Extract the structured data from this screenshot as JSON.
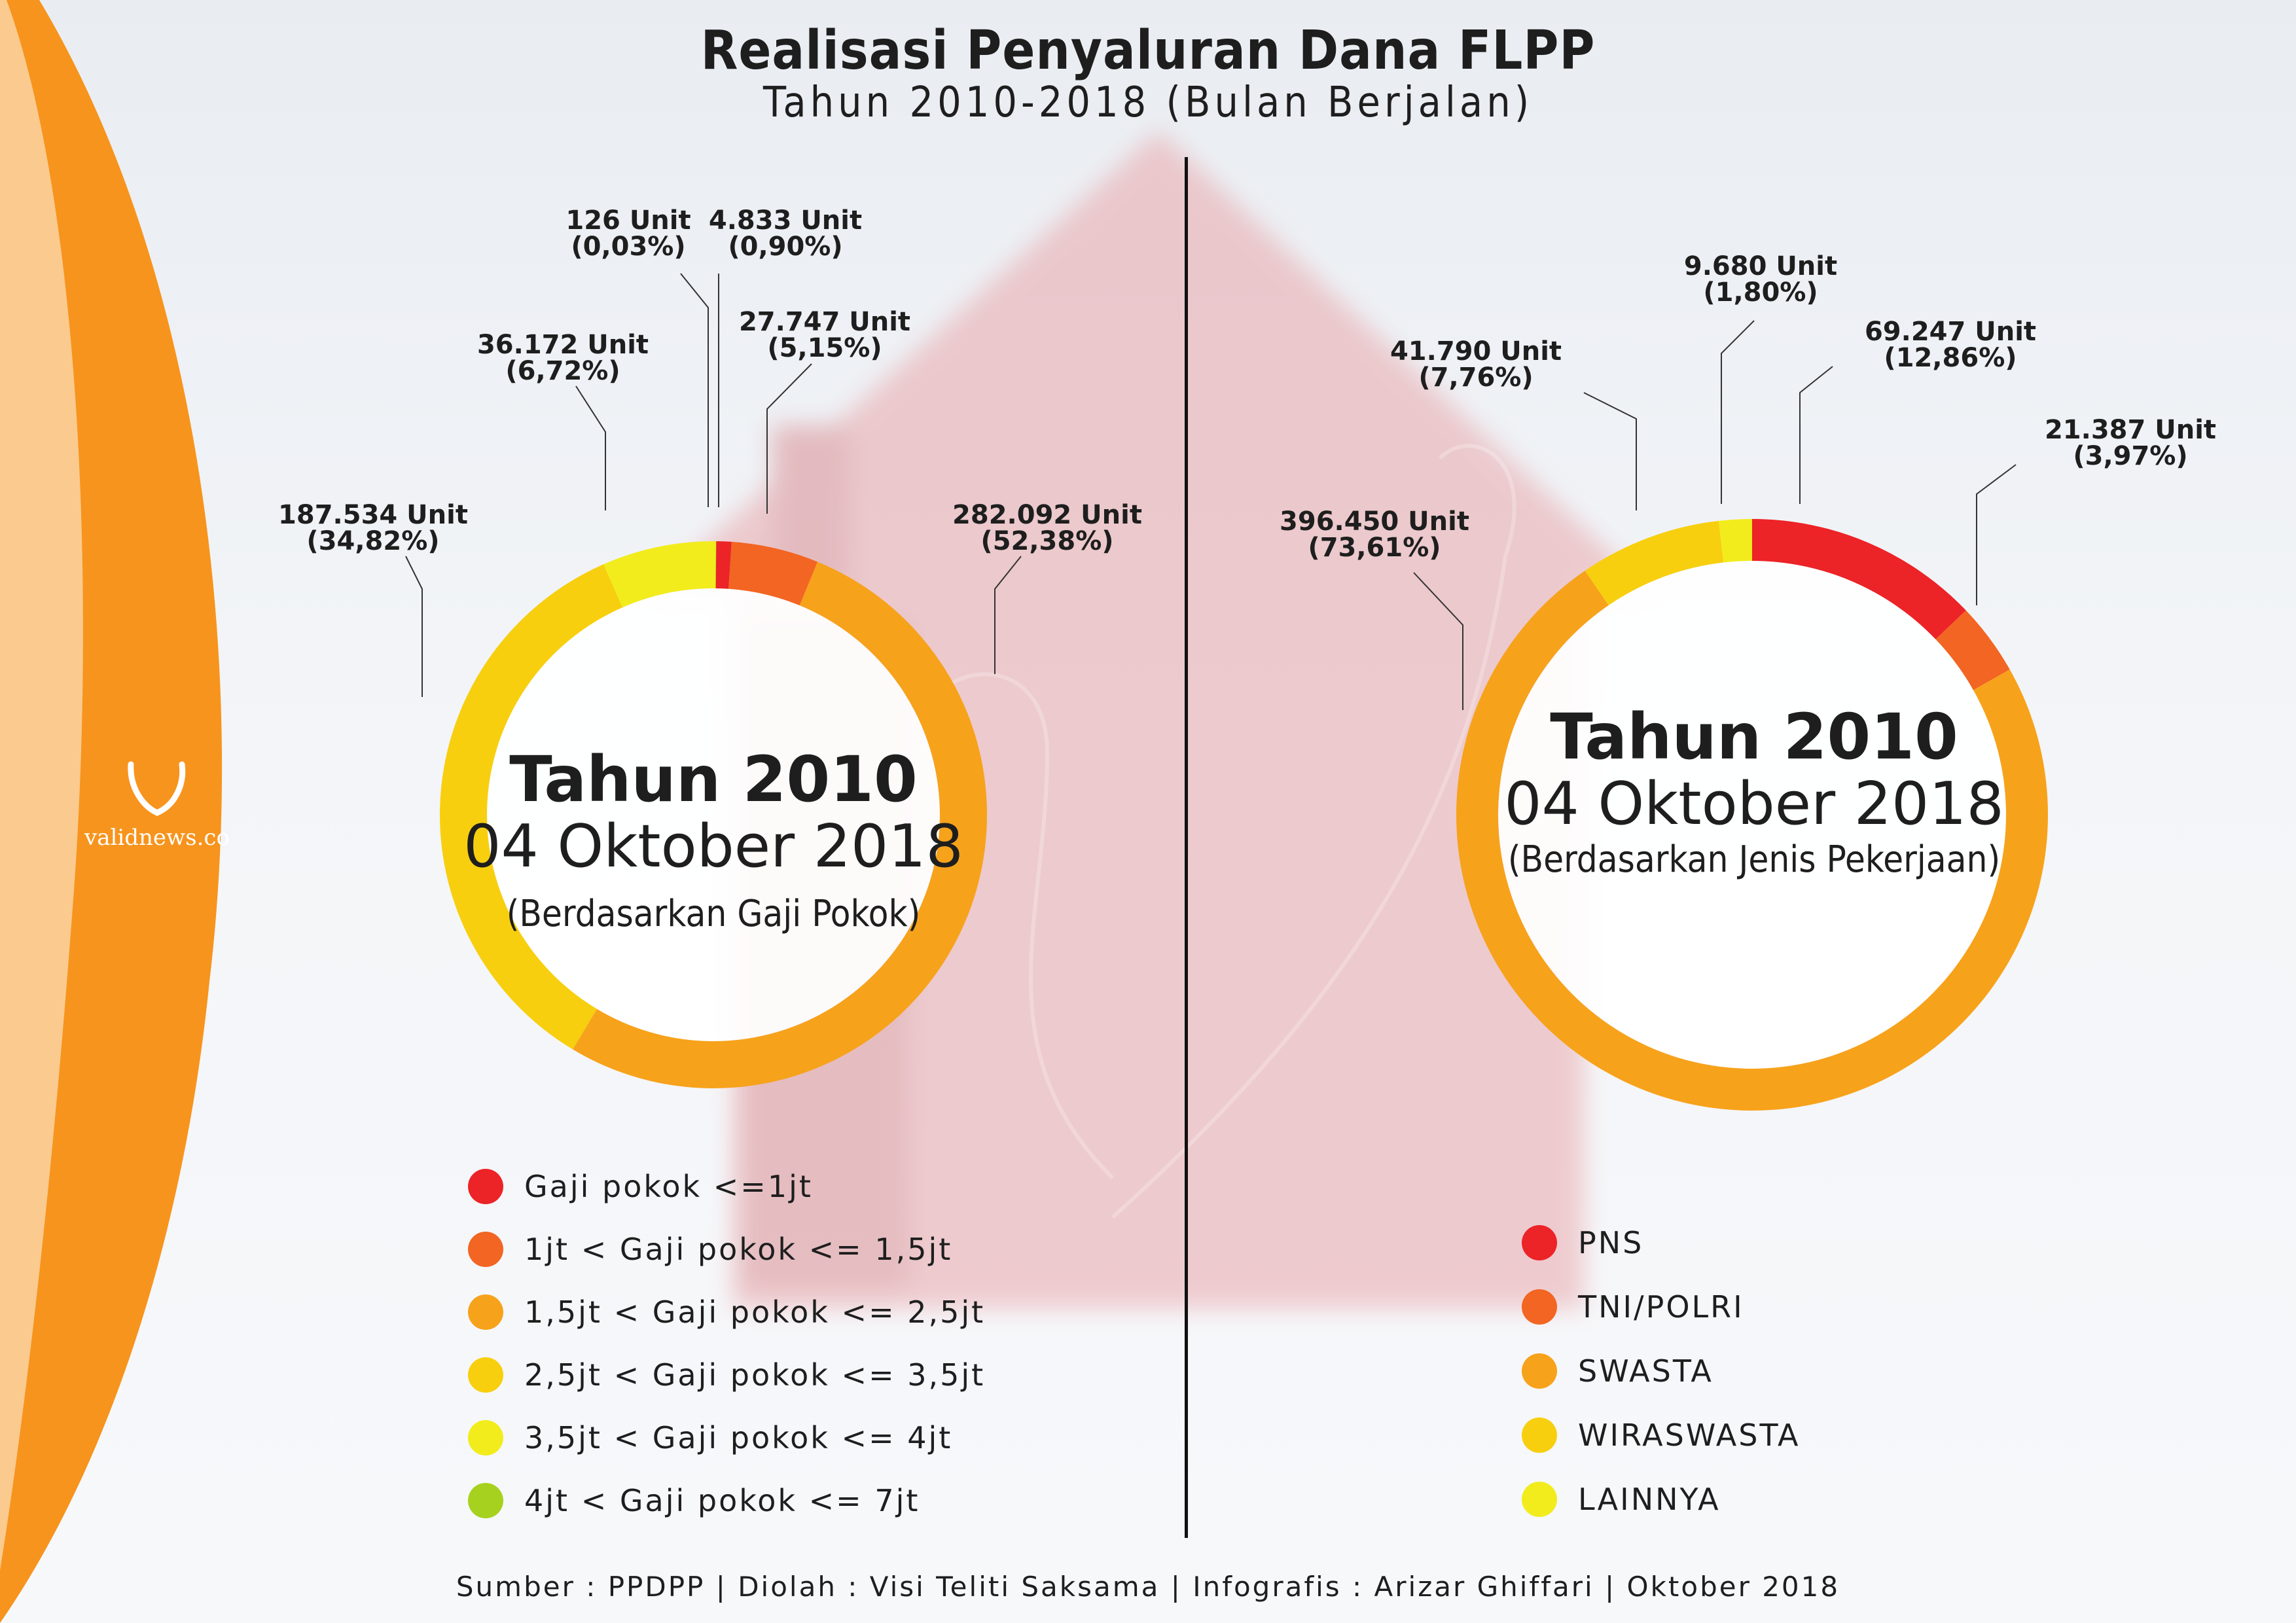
{
  "title": "Realisasi Penyaluran Dana FLPP",
  "subtitle": "Tahun 2010-2018 (Bulan Berjalan)",
  "logo": {
    "mark": "V",
    "text": "validnews.co"
  },
  "footer": "Sumber : PPDPP | Diolah : Visi Teliti Saksama | Infografis : Arizar Ghiffari | Oktober 2018",
  "colors": {
    "red": "#ec2327",
    "orange_red": "#f26522",
    "orange": "#f7a21b",
    "yellow_orange": "#f7cf0e",
    "yellow": "#f2ec1d",
    "green": "#a6d21f"
  },
  "chart_data": [
    {
      "type": "pie",
      "center": {
        "year": "Tahun 2010",
        "date": "04 Oktober 2018",
        "basis": "(Berdasarkan Gaji Pokok)"
      },
      "series": [
        {
          "name": "Gaji pokok <=1jt",
          "value": 4833,
          "percent": 0.9,
          "label_unit": "4.833 Unit",
          "label_pct": "(0,90%)",
          "color": "#ec2327"
        },
        {
          "name": "1jt < Gaji pokok <= 1,5jt",
          "value": 27747,
          "percent": 5.15,
          "label_unit": "27.747 Unit",
          "label_pct": "(5,15%)",
          "color": "#f26522"
        },
        {
          "name": "1,5jt < Gaji pokok <= 2,5jt",
          "value": 282092,
          "percent": 52.38,
          "label_unit": "282.092 Unit",
          "label_pct": "(52,38%)",
          "color": "#f7a21b"
        },
        {
          "name": "2,5jt < Gaji pokok <= 3,5jt",
          "value": 187534,
          "percent": 34.82,
          "label_unit": "187.534 Unit",
          "label_pct": "(34,82%)",
          "color": "#f7cf0e"
        },
        {
          "name": "3,5jt < Gaji pokok <= 4jt",
          "value": 36172,
          "percent": 6.72,
          "label_unit": "36.172 Unit",
          "label_pct": "(6,72%)",
          "color": "#f2ec1d"
        },
        {
          "name": "4jt < Gaji pokok <= 7jt",
          "value": 126,
          "percent": 0.03,
          "label_unit": "126 Unit",
          "label_pct": "(0,03%)",
          "color": "#a6d21f"
        }
      ]
    },
    {
      "type": "pie",
      "center": {
        "year": "Tahun 2010",
        "date": "04 Oktober 2018",
        "basis": "(Berdasarkan Jenis Pekerjaan)"
      },
      "series": [
        {
          "name": "PNS",
          "value": 69247,
          "percent": 12.86,
          "label_unit": "69.247 Unit",
          "label_pct": "(12,86%)",
          "color": "#ec2327"
        },
        {
          "name": "TNI/POLRI",
          "value": 21387,
          "percent": 3.97,
          "label_unit": "21.387 Unit",
          "label_pct": "(3,97%)",
          "color": "#f26522"
        },
        {
          "name": "SWASTA",
          "value": 396450,
          "percent": 73.61,
          "label_unit": "396.450 Unit",
          "label_pct": "(73,61%)",
          "color": "#f7a21b"
        },
        {
          "name": "WIRASWASTA",
          "value": 41790,
          "percent": 7.76,
          "label_unit": "41.790 Unit",
          "label_pct": "(7,76%)",
          "color": "#f7cf0e"
        },
        {
          "name": "LAINNYA",
          "value": 9680,
          "percent": 1.8,
          "label_unit": "9.680 Unit",
          "label_pct": "(1,80%)",
          "color": "#f2ec1d"
        }
      ]
    }
  ]
}
